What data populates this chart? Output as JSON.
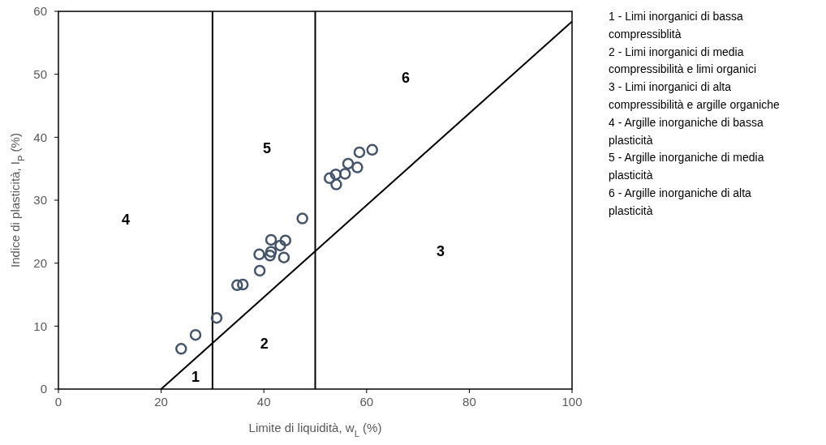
{
  "chart_data": {
    "type": "scatter",
    "xlabel": "Limite di liquidità, w$_{L}$ (%)",
    "ylabel": "Indice di plasticità, I$_{P}$ (%)",
    "xlim": [
      0,
      100
    ],
    "ylim": [
      0,
      60
    ],
    "xticks": [
      0,
      20,
      40,
      60,
      80,
      100
    ],
    "yticks": [
      0,
      10,
      20,
      30,
      40,
      50,
      60
    ],
    "marker": "circle",
    "grid": false,
    "series": [
      {
        "color": "#44546a",
        "x": [
          23.9,
          26.7,
          30.8,
          34.8,
          35.9,
          39.2,
          39.1,
          41.2,
          41.4,
          41.4,
          43.2,
          44.2,
          43.9,
          47.5,
          52.8,
          54.0,
          54.1,
          55.8,
          56.4,
          58.2,
          58.6,
          61.1
        ],
        "values": [
          6.4,
          8.6,
          11.3,
          16.5,
          16.6,
          18.8,
          21.4,
          21.2,
          21.8,
          23.7,
          22.8,
          23.6,
          20.9,
          27.1,
          33.5,
          34.1,
          32.5,
          34.2,
          35.8,
          35.2,
          37.6,
          38.0
        ]
      },
      {
        "type": "line",
        "color": "#000000",
        "marker": "none",
        "x": [
          20,
          100
        ],
        "values": [
          0,
          58.4
        ]
      }
    ],
    "ref_lines": [
      {
        "axis": "x",
        "value": 30,
        "color": "#000000"
      },
      {
        "axis": "x",
        "value": 50,
        "color": "#000000"
      }
    ],
    "annotations": [
      "1",
      "2",
      "3",
      "4",
      "5",
      "6",
      "1 - Limi inorganici di bassa compressiblità",
      "2 - Limi inorganici di media compressibilità e limi organici",
      "3 - Limi inorganici di alta compressibilità e argille organiche",
      "4 - Argille inorganiche di bassa plasticità",
      "5 - Argille inorganiche di media plasticità",
      "6 - Argille inorganiche di alta plasticità"
    ]
  }
}
